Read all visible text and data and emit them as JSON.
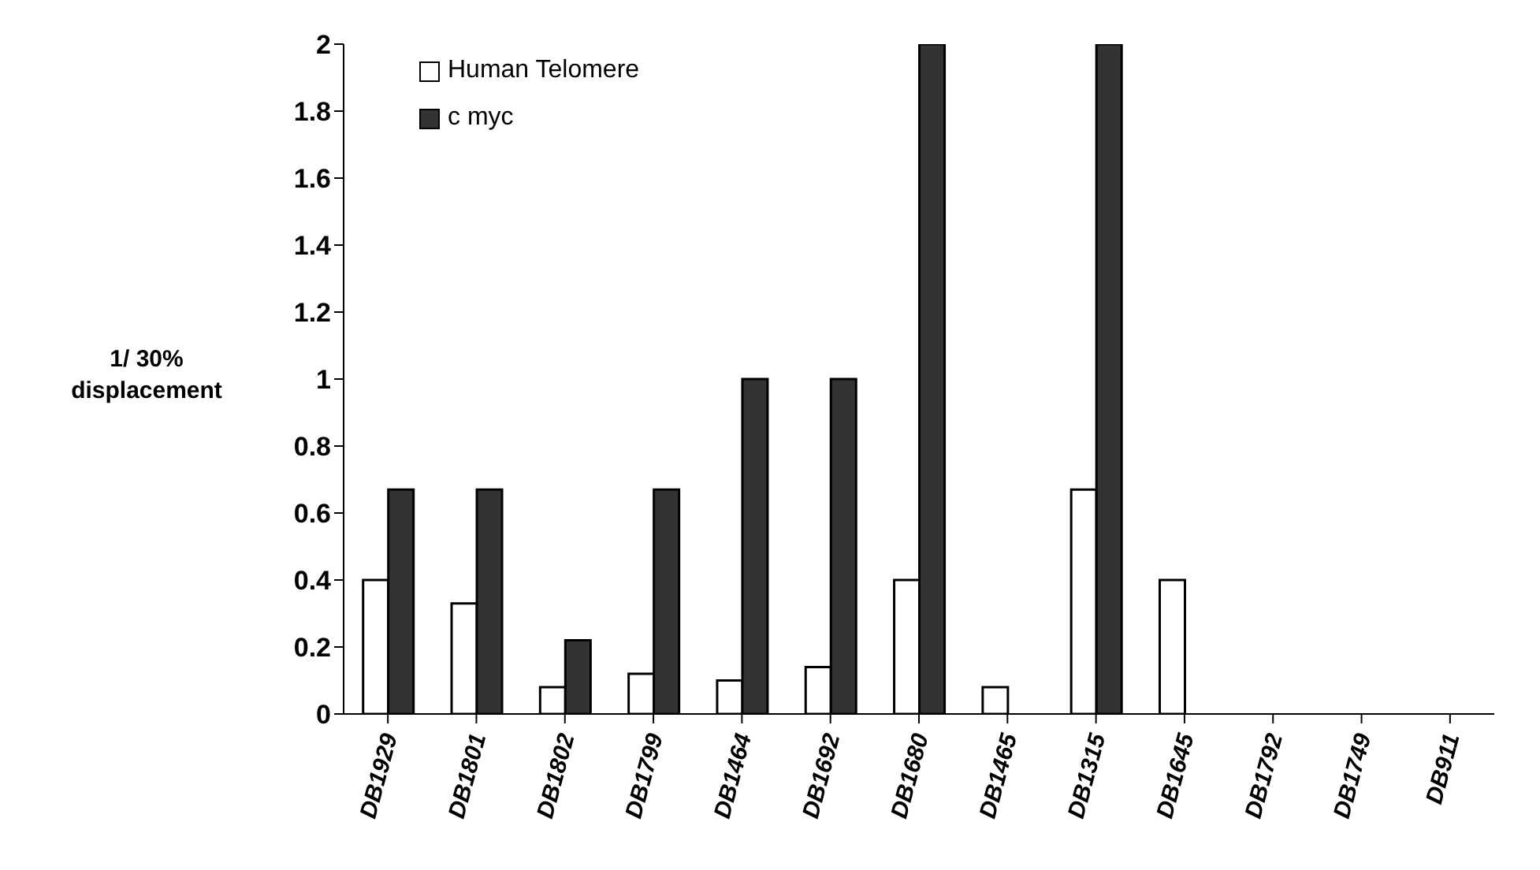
{
  "chart_data": {
    "type": "bar",
    "ylabel": "1/ 30% displacement",
    "categories": [
      "DB1929",
      "DB1801",
      "DB1802",
      "DB1799",
      "DB1464",
      "DB1692",
      "DB1680",
      "DB1465",
      "DB1315",
      "DB1645",
      "DB1792",
      "DB1749",
      "DB911"
    ],
    "series": [
      {
        "name": "Human Telomere",
        "color": "#ffffff",
        "values": [
          0.4,
          0.33,
          0.08,
          0.12,
          0.1,
          0.14,
          0.4,
          0.08,
          0.67,
          0.4,
          0,
          0,
          0
        ]
      },
      {
        "name": "c myc",
        "color": "#333333",
        "values": [
          0.67,
          0.67,
          0.22,
          0.67,
          1,
          1,
          2,
          0,
          2,
          0,
          0,
          0,
          0
        ]
      }
    ],
    "ylim": [
      0,
      2
    ],
    "yticks": [
      0,
      0.2,
      0.4,
      0.6,
      0.8,
      1,
      1.2,
      1.4,
      1.6,
      1.8,
      2
    ],
    "legend": "top left"
  }
}
